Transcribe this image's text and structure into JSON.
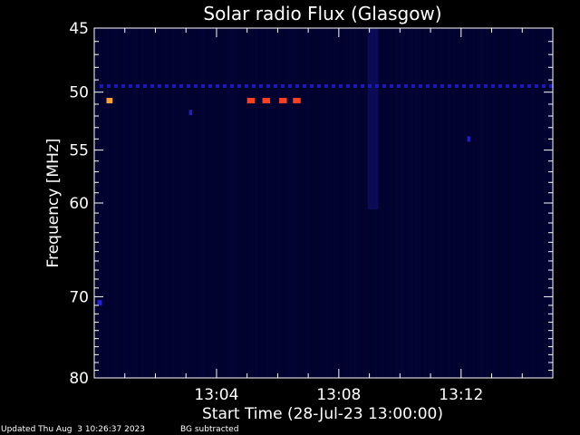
{
  "chart_data": {
    "type": "heatmap",
    "title": "Solar radio Flux (Glasgow)",
    "xlabel": "Start Time (28-Jul-23 13:00:00)",
    "ylabel": "Frequency [MHz]",
    "x_unit": "minutes after 13:00:00",
    "xlim": [
      0,
      15
    ],
    "ylim": [
      45,
      80
    ],
    "y_ticks": [
      45,
      50,
      55,
      60,
      70,
      80
    ],
    "x_ticks": [
      {
        "x": 4,
        "label": "13:04"
      },
      {
        "x": 8,
        "label": "13:08"
      },
      {
        "x": 12,
        "label": "13:12"
      }
    ],
    "background_color": "#02022a",
    "persistent_band_mhz": 49.5,
    "features": [
      {
        "x_start": 0.4,
        "x_end": 0.6,
        "y_mhz": 50.7,
        "color": "#ffa030",
        "intensity": "high"
      },
      {
        "x_start": 5.0,
        "x_end": 5.25,
        "y_mhz": 50.7,
        "color": "#ff4020",
        "intensity": "high"
      },
      {
        "x_start": 5.5,
        "x_end": 5.75,
        "y_mhz": 50.7,
        "color": "#ff4020",
        "intensity": "high"
      },
      {
        "x_start": 6.05,
        "x_end": 6.3,
        "y_mhz": 50.7,
        "color": "#ff4020",
        "intensity": "high"
      },
      {
        "x_start": 6.5,
        "x_end": 6.75,
        "y_mhz": 50.7,
        "color": "#ff4020",
        "intensity": "high"
      },
      {
        "x_start": 0.1,
        "x_end": 0.25,
        "y_mhz": 70.7,
        "color": "#2020e0",
        "intensity": "low"
      },
      {
        "x_start": 3.1,
        "x_end": 3.2,
        "y_mhz": 51.7,
        "color": "#2020c0",
        "intensity": "low"
      },
      {
        "x_start": 12.2,
        "x_end": 12.3,
        "y_mhz": 54.0,
        "color": "#2020c0",
        "intensity": "low"
      }
    ]
  },
  "footer": {
    "updated": "Updated Thu Aug  3 10:26:37 2023",
    "note": "BG subtracted"
  }
}
